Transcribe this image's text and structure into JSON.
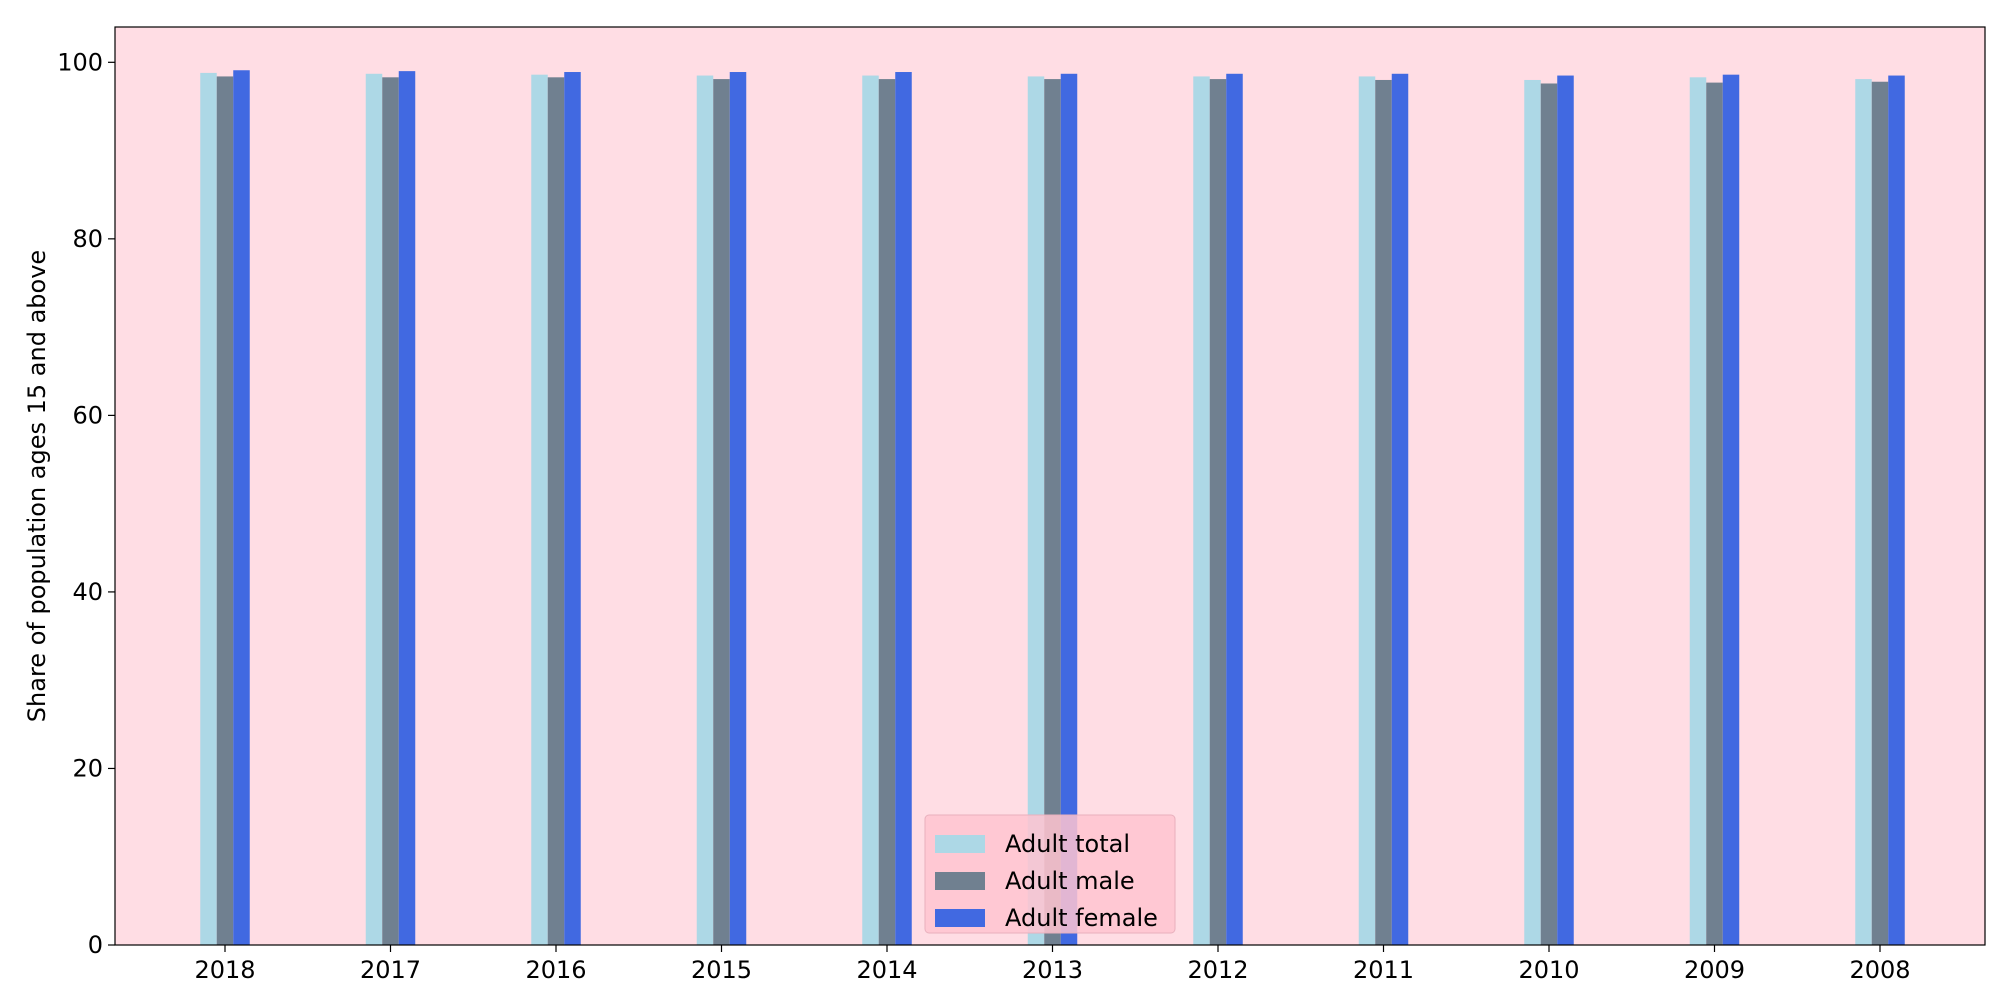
{
  "chart_data": {
    "type": "bar",
    "title": "",
    "xlabel": "",
    "ylabel": "Share of population ages 15 and above",
    "categories": [
      "2018",
      "2017",
      "2016",
      "2015",
      "2014",
      "2013",
      "2012",
      "2011",
      "2010",
      "2009",
      "2008"
    ],
    "series": [
      {
        "name": "Adult total",
        "color": "#add8e6",
        "values": [
          98.8,
          98.7,
          98.6,
          98.5,
          98.5,
          98.4,
          98.4,
          98.4,
          98.0,
          98.3,
          98.1
        ]
      },
      {
        "name": "Adult male",
        "color": "#708090",
        "values": [
          98.4,
          98.3,
          98.3,
          98.1,
          98.1,
          98.1,
          98.1,
          98.0,
          97.6,
          97.7,
          97.8
        ]
      },
      {
        "name": "Adult female",
        "color": "#4169e1",
        "values": [
          99.1,
          99.0,
          98.9,
          98.9,
          98.9,
          98.7,
          98.7,
          98.7,
          98.5,
          98.6,
          98.5
        ]
      }
    ],
    "ylim": [
      0,
      104
    ],
    "yticks": [
      0,
      20,
      40,
      60,
      80,
      100
    ],
    "grid": false,
    "legend": "lower-center",
    "plot_background": "#ffdde4",
    "legend_background": "#ffc4d0"
  }
}
